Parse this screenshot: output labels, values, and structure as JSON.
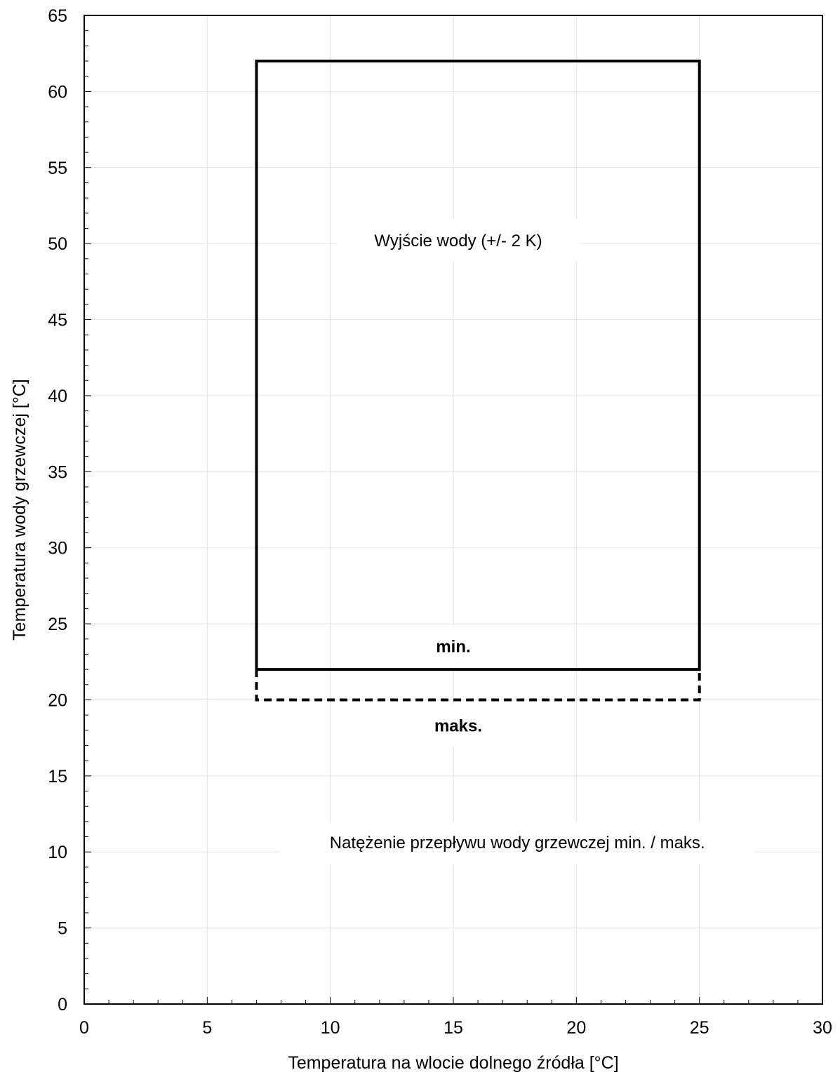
{
  "chart_data": {
    "type": "line",
    "title": "",
    "xlabel": "Temperatura na wlocie dolnego źródła [°C]",
    "ylabel": "Temperatura wody grzewczej [°C]",
    "xlim": [
      0,
      30
    ],
    "ylim": [
      0,
      65
    ],
    "x_ticks": [
      0,
      5,
      10,
      15,
      20,
      25,
      30
    ],
    "y_ticks": [
      0,
      5,
      10,
      15,
      20,
      25,
      30,
      35,
      40,
      45,
      50,
      55,
      60,
      65
    ],
    "x_minor_step": 1,
    "y_minor_step": 1,
    "grid": true,
    "series": [
      {
        "style": "solid",
        "color": "#000000",
        "points": [
          [
            7,
            22
          ],
          [
            7,
            62
          ],
          [
            25,
            62
          ],
          [
            25,
            22
          ],
          [
            7,
            22
          ]
        ]
      },
      {
        "style": "dashed",
        "color": "#000000",
        "points": [
          [
            7,
            22
          ],
          [
            7,
            20
          ],
          [
            25,
            20
          ],
          [
            25,
            22
          ]
        ]
      }
    ],
    "annotations": [
      {
        "id": "outlet",
        "text": "Wyjście wody (+/- 2 K)",
        "x": 15.2,
        "y": 50.2,
        "bold": false
      },
      {
        "id": "min",
        "text": "min.",
        "x": 15.0,
        "y": 23.5,
        "bold": true
      },
      {
        "id": "max",
        "text": "maks.",
        "x": 15.2,
        "y": 18.3,
        "bold": true
      },
      {
        "id": "flow",
        "text": "Natężenie przepływu wody grzewczej min. / maks.",
        "x": 17.6,
        "y": 10.6,
        "bold": false
      }
    ]
  }
}
